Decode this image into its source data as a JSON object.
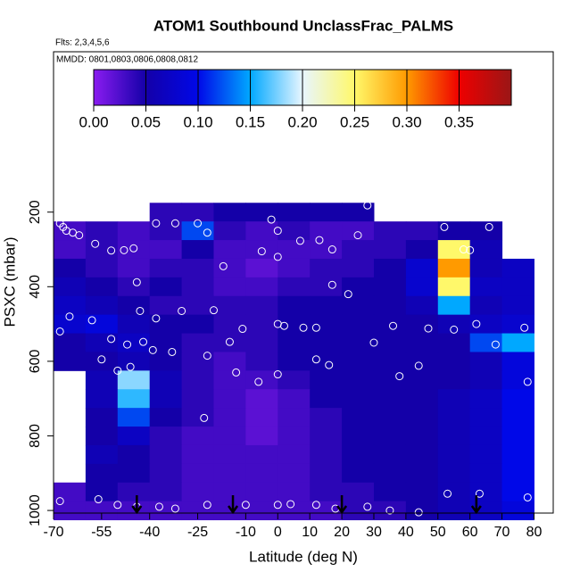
{
  "chart_data": {
    "type": "heatmap",
    "title": "ATOM1 Southbound UnclassFrac_PALMS",
    "subtitle": "Flts: 2,3,4,5,6",
    "annotation": "MMDD: 0801,0803,0806,0808,0812",
    "xlabel": "Latitude (deg N)",
    "ylabel": "PSXC (mbar)",
    "xlim": [
      -70,
      86
    ],
    "ylim": [
      1007,
      -230
    ],
    "xticks": [
      -70,
      -55,
      -40,
      -25,
      -10,
      0,
      10,
      20,
      30,
      40,
      50,
      60,
      70,
      80
    ],
    "yticks": [
      200,
      400,
      600,
      800,
      1000
    ],
    "x": [
      -65,
      -55,
      -45,
      -35,
      -25,
      -15,
      -5,
      5,
      15,
      25,
      35,
      45,
      55,
      65,
      75
    ],
    "y": [
      200,
      250,
      300,
      350,
      400,
      450,
      500,
      550,
      600,
      650,
      700,
      750,
      800,
      850,
      900,
      950,
      1000
    ],
    "z": [
      [
        null,
        null,
        null,
        0.04,
        0.04,
        0.05,
        0.05,
        0.05,
        0.05,
        0.05,
        null,
        null,
        null,
        null,
        null
      ],
      [
        0.03,
        0.04,
        0.03,
        0.04,
        0.12,
        0.04,
        0.03,
        0.04,
        0.03,
        0.03,
        0.04,
        0.04,
        0.05,
        0.05,
        null
      ],
      [
        0.03,
        0.04,
        0.03,
        0.03,
        0.05,
        0.03,
        0.03,
        0.03,
        0.03,
        0.04,
        0.04,
        0.05,
        0.25,
        0.06,
        null
      ],
      [
        0.05,
        0.04,
        0.03,
        0.04,
        0.04,
        0.03,
        0.02,
        0.03,
        0.04,
        0.04,
        0.05,
        0.08,
        0.3,
        0.06,
        0.07
      ],
      [
        0.06,
        0.05,
        0.04,
        0.05,
        0.04,
        0.03,
        0.03,
        0.04,
        0.04,
        0.05,
        0.05,
        0.08,
        0.25,
        0.07,
        0.07
      ],
      [
        0.07,
        0.06,
        0.05,
        0.04,
        0.04,
        0.04,
        0.04,
        0.05,
        0.05,
        0.05,
        0.05,
        0.06,
        0.15,
        0.06,
        0.07
      ],
      [
        0.08,
        0.09,
        0.06,
        0.05,
        0.05,
        0.04,
        0.04,
        0.05,
        0.05,
        0.05,
        0.05,
        0.05,
        0.06,
        0.07,
        0.08
      ],
      [
        0.05,
        0.06,
        0.07,
        0.05,
        0.04,
        0.04,
        0.04,
        0.05,
        0.05,
        0.05,
        0.05,
        0.05,
        0.05,
        0.12,
        0.15
      ],
      [
        0.05,
        0.05,
        0.06,
        0.05,
        0.04,
        0.03,
        0.04,
        0.05,
        0.05,
        0.05,
        0.05,
        0.05,
        0.05,
        0.06,
        0.09
      ],
      [
        null,
        0.06,
        0.18,
        0.06,
        0.04,
        0.03,
        0.03,
        0.04,
        0.05,
        0.05,
        0.05,
        0.05,
        0.05,
        0.06,
        0.09
      ],
      [
        null,
        0.06,
        0.16,
        0.06,
        0.04,
        0.03,
        0.02,
        0.03,
        0.05,
        0.05,
        0.05,
        0.05,
        0.06,
        0.07,
        0.1
      ],
      [
        null,
        0.05,
        0.12,
        0.05,
        0.04,
        0.03,
        0.02,
        0.03,
        0.04,
        0.05,
        0.05,
        0.05,
        0.06,
        0.07,
        0.1
      ],
      [
        null,
        0.05,
        0.07,
        0.04,
        0.03,
        0.03,
        0.02,
        0.03,
        0.04,
        0.05,
        0.05,
        0.05,
        0.06,
        0.07,
        0.1
      ],
      [
        null,
        0.06,
        0.05,
        0.04,
        0.03,
        0.03,
        0.03,
        0.03,
        0.04,
        0.05,
        0.05,
        0.05,
        0.06,
        0.07,
        0.1
      ],
      [
        null,
        0.05,
        0.05,
        0.04,
        0.03,
        0.03,
        0.03,
        0.03,
        0.04,
        0.05,
        0.05,
        0.05,
        0.06,
        0.07,
        0.1
      ],
      [
        0.03,
        0.05,
        0.04,
        0.04,
        0.03,
        0.03,
        0.03,
        0.03,
        0.04,
        0.04,
        0.05,
        0.05,
        0.06,
        0.07,
        0.1
      ],
      [
        0.03,
        0.03,
        0.03,
        0.03,
        0.03,
        0.03,
        0.03,
        0.03,
        0.03,
        0.04,
        0.04,
        0.05,
        0.06,
        0.07,
        0.09
      ]
    ],
    "cell_width": 10,
    "cell_height": 50,
    "clim": [
      0,
      0.4
    ],
    "colormap": [
      "#8a1cf0",
      "#1400a8",
      "#0008e8",
      "#00a8ff",
      "#e8f6ff",
      "#fff86a",
      "#ff9a00",
      "#ee0000",
      "#9a1616"
    ],
    "colorbar_ticks": [
      {
        "value": 0,
        "label": "0.00"
      },
      {
        "value": 0.05,
        "label": "0.05"
      },
      {
        "value": 0.1,
        "label": "0.10"
      },
      {
        "value": 0.15,
        "label": "0.15"
      },
      {
        "value": 0.2,
        "label": "0.20"
      },
      {
        "value": 0.25,
        "label": "0.25"
      },
      {
        "value": 0.3,
        "label": "0.30"
      },
      {
        "value": 0.35,
        "label": "0.35"
      }
    ],
    "points": {
      "x": [
        -68,
        -67,
        -66,
        -64,
        -62,
        -57,
        -52,
        -48,
        -45,
        -38,
        -32,
        -25,
        -22,
        -17,
        -5,
        -2,
        0,
        7,
        13,
        17,
        25,
        28,
        33,
        52,
        58,
        60,
        66,
        75,
        -44,
        -43,
        -38,
        -30,
        -20,
        -11,
        0,
        0,
        2,
        8,
        12,
        17,
        22,
        30,
        36,
        47,
        55,
        62,
        68,
        77,
        -65,
        -58,
        -52,
        -47,
        -42,
        -39,
        -33,
        -22,
        -15,
        -13,
        -6,
        0,
        12,
        16,
        38,
        44,
        -55,
        -50,
        -46,
        -23,
        -68,
        -56,
        -50,
        -44,
        -37,
        -32,
        -22,
        -10,
        0,
        4,
        12,
        18,
        28,
        35,
        44,
        53,
        63,
        78,
        78,
        -68
      ],
      "y": [
        230,
        240,
        250,
        255,
        262,
        285,
        303,
        302,
        297,
        230,
        230,
        230,
        255,
        345,
        305,
        220,
        250,
        277,
        275,
        300,
        262,
        182,
        195,
        240,
        300,
        302,
        240,
        262,
        388,
        465,
        485,
        465,
        463,
        513,
        320,
        500,
        505,
        510,
        510,
        395,
        420,
        550,
        505,
        512,
        515,
        500,
        555,
        510,
        480,
        490,
        540,
        555,
        548,
        570,
        575,
        585,
        548,
        630,
        655,
        635,
        595,
        610,
        640,
        612,
        595,
        625,
        615,
        752,
        975,
        970,
        985,
        990,
        990,
        995,
        985,
        985,
        985,
        983,
        985,
        995,
        990,
        1000,
        1005,
        955,
        955,
        965,
        655,
        520
      ]
    },
    "point_color": "#ffffff",
    "arrows_x": [
      -44,
      -14,
      20,
      62
    ]
  }
}
